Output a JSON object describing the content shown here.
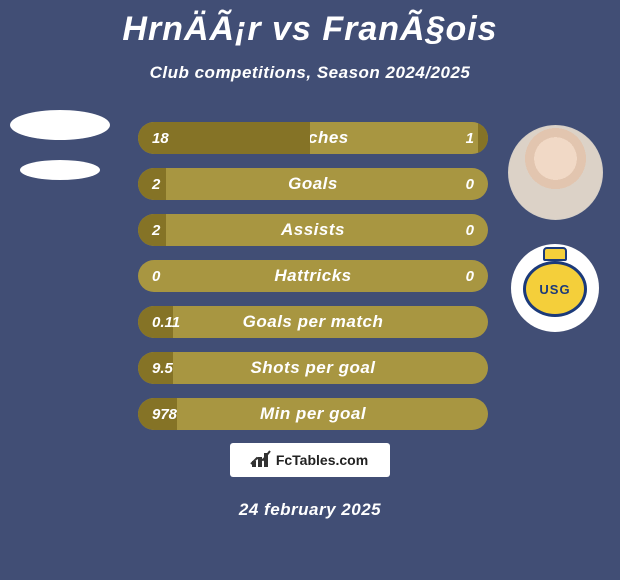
{
  "header": {
    "title": "HrnÄÃ¡r vs FranÃ§ois",
    "subtitle": "Club competitions, Season 2024/2025"
  },
  "stats": {
    "bar_background": "#a89641",
    "bar_fill": "#857326",
    "rows": [
      {
        "label": "Matches",
        "left": "18",
        "right": "1",
        "left_pct": 49,
        "right_pct": 3
      },
      {
        "label": "Goals",
        "left": "2",
        "right": "0",
        "left_pct": 8,
        "right_pct": 0
      },
      {
        "label": "Assists",
        "left": "2",
        "right": "0",
        "left_pct": 8,
        "right_pct": 0
      },
      {
        "label": "Hattricks",
        "left": "0",
        "right": "0",
        "left_pct": 0,
        "right_pct": 0
      },
      {
        "label": "Goals per match",
        "left": "0.11",
        "right": "",
        "left_pct": 10,
        "right_pct": 0
      },
      {
        "label": "Shots per goal",
        "left": "9.5",
        "right": "",
        "left_pct": 10,
        "right_pct": 0
      },
      {
        "label": "Min per goal",
        "left": "978",
        "right": "",
        "left_pct": 11,
        "right_pct": 0
      }
    ]
  },
  "footer": {
    "site_label": "FcTables.com",
    "date": "24 february 2025"
  },
  "club_logo": {
    "letters": "USG"
  },
  "colors": {
    "page_bg": "#414e75",
    "text": "#ffffff"
  }
}
